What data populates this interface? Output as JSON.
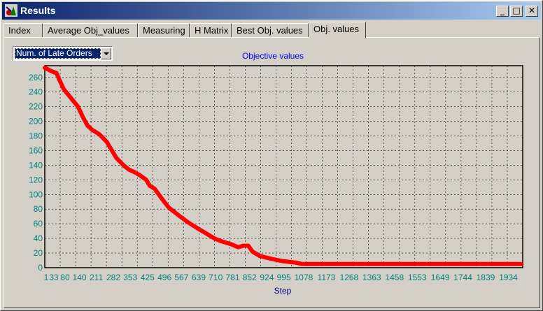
{
  "window": {
    "title": "Results",
    "icon": "app-logo-icon",
    "controls": {
      "minimize": "_",
      "maximize": "□",
      "close": "✕"
    }
  },
  "tabs": [
    {
      "label": "Index",
      "active": false
    },
    {
      "label": "Average Obj_values",
      "active": false
    },
    {
      "label": "Measuring",
      "active": false
    },
    {
      "label": "H Matrix",
      "active": false
    },
    {
      "label": "Best Obj. values",
      "active": false
    },
    {
      "label": "Obj. values",
      "active": true
    }
  ],
  "objective_select": {
    "value": "Num. of Late Orders"
  },
  "colors": {
    "series": "#ff0000",
    "axis_text": "#008080",
    "title_text": "#0000ff",
    "label_text": "#000080"
  },
  "chart_data": {
    "type": "line",
    "title": "Objective values",
    "xlabel": "Step",
    "ylabel": "",
    "x_tick_labels": [
      "1",
      "33",
      "80",
      "140",
      "211",
      "282",
      "353",
      "425",
      "496",
      "567",
      "639",
      "710",
      "781",
      "852",
      "924",
      "995",
      "1078",
      "1173",
      "1268",
      "1363",
      "1458",
      "1553",
      "1649",
      "1744",
      "1839",
      "1934"
    ],
    "y_ticks": [
      0,
      20,
      40,
      60,
      80,
      100,
      120,
      140,
      160,
      180,
      200,
      220,
      240,
      260
    ],
    "ylim": [
      0,
      276
    ],
    "xlim": [
      1,
      2000
    ],
    "grid": true,
    "series": [
      {
        "x": [
          1,
          20,
          33,
          50,
          60,
          80,
          100,
          120,
          140,
          160,
          180,
          200,
          211,
          230,
          260,
          282,
          300,
          330,
          353,
          380,
          400,
          425,
          440,
          460,
          496,
          520,
          567,
          600,
          639,
          680,
          710,
          740,
          781,
          810,
          830,
          852,
          870,
          900,
          924,
          950,
          995,
          1020,
          1050,
          1078,
          1100,
          1173,
          1268,
          1363,
          1458,
          1553,
          1649,
          1744,
          1839,
          1934,
          1995
        ],
        "values": [
          273,
          270,
          268,
          266,
          258,
          244,
          236,
          228,
          220,
          206,
          194,
          188,
          186,
          182,
          172,
          160,
          150,
          140,
          134,
          130,
          126,
          120,
          112,
          108,
          92,
          82,
          70,
          62,
          54,
          46,
          40,
          36,
          32,
          28,
          30,
          30,
          22,
          16,
          14,
          12,
          9,
          8,
          7,
          5,
          5,
          5,
          5,
          5,
          5,
          5,
          5,
          5,
          5,
          5,
          5
        ]
      }
    ]
  }
}
